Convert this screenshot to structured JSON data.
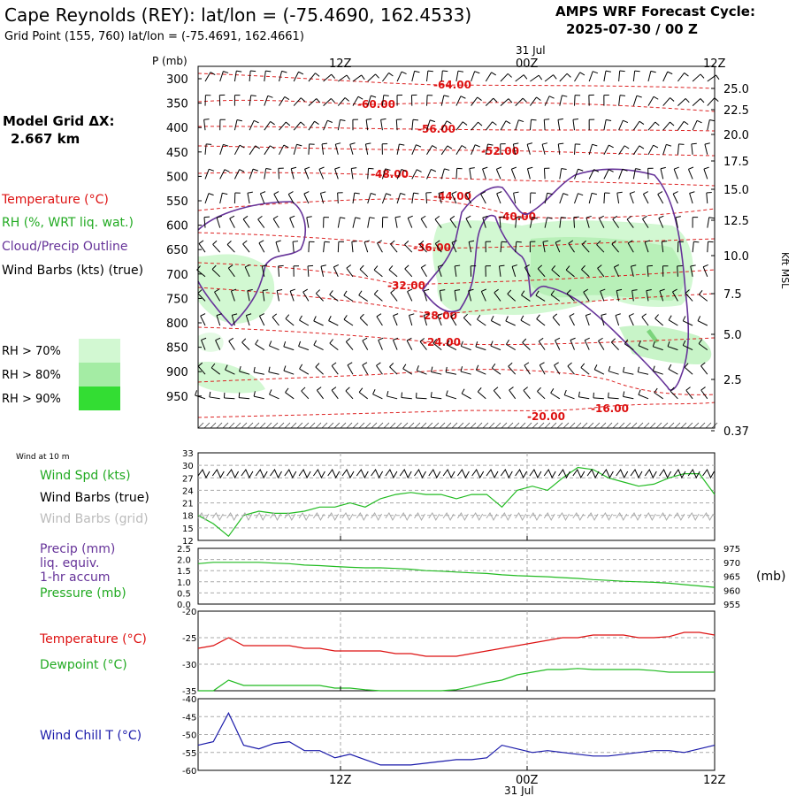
{
  "header": {
    "title": "Cape Reynolds (REY):  lat/lon = (-75.4690, 162.4533)",
    "subtitle": "Grid Point (155, 760) lat/lon = (-75.4691, 162.4661)",
    "model_line1": "AMPS WRF Forecast Cycle:",
    "model_line2": "2025-07-30 / 00  Z"
  },
  "left_panel": {
    "grid_label": "Model Grid ΔX:",
    "grid_value": "2.667 km",
    "legend_temperature": "Temperature (°C)",
    "legend_rh": "RH (%, WRT liq. wat.)",
    "legend_cloud": "Cloud/Precip Outline",
    "legend_wind": "Wind Barbs (kts) (true)",
    "rh70": "RH > 70%",
    "rh80": "RH > 80%",
    "rh90": "RH > 90%"
  },
  "colors": {
    "temperature": "#dd1111",
    "rh70": "#d2f8d2",
    "rh80": "#a4eca4",
    "rh90": "#33dd33",
    "cloud": "#663399",
    "wind_speed": "#22bb22",
    "pressure": "#22bb22",
    "dewpoint": "#22bb22",
    "wind_chill": "#1a1aaa",
    "grid": "#aaaaaa"
  },
  "time_axis": {
    "top_date": "31 Jul",
    "bottom_date": "31 Jul",
    "ticks": [
      "12Z",
      "00Z",
      "12Z"
    ]
  },
  "chart_data": [
    {
      "type": "line",
      "panel": "cross-section",
      "ylabel": "P (mb)",
      "pressure_ticks": [
        300,
        350,
        400,
        450,
        500,
        550,
        600,
        650,
        700,
        750,
        800,
        850,
        900,
        950
      ],
      "right_axis_label": "Kft MSL",
      "height_ticks": [
        "25.0",
        "22.5",
        "20.0",
        "17.5",
        "15.0",
        "12.5",
        "10.0",
        "7.5",
        "5.0",
        "2.5",
        "0.37"
      ],
      "temperature_contour_labels": [
        "-64.00",
        "-60.00",
        "-56.00",
        "-52.00",
        "-48.00",
        "-44.00",
        "-40.00",
        "-36.00",
        "-32.00",
        "-28.00",
        "-24.00",
        "-20.00",
        "-16.00"
      ]
    },
    {
      "type": "line",
      "panel": "wind",
      "title": "Wind at 10 m",
      "series_labels": [
        "Wind Spd (kts)",
        "Wind Barbs (true)",
        "Wind Barbs (grid)"
      ],
      "ylim": [
        12,
        33
      ],
      "yticks": [
        12,
        15,
        18,
        21,
        24,
        27,
        30,
        33
      ],
      "series": [
        {
          "name": "Wind Spd (kts)",
          "values": [
            18,
            16,
            13,
            18,
            19,
            18.5,
            18.5,
            19,
            20,
            20,
            21,
            20,
            22,
            23,
            23.5,
            23,
            23,
            22,
            23,
            23,
            20,
            24,
            25,
            24,
            27,
            29.5,
            29,
            27,
            26,
            25,
            25.5,
            27,
            28,
            28,
            23
          ]
        }
      ]
    },
    {
      "type": "line",
      "panel": "precip-pressure",
      "series_labels": [
        "Precip (mm)",
        "liq. equiv.",
        "1-hr accum",
        "Pressure (mb)"
      ],
      "left_yticks": [
        "0.0",
        "0.5",
        "1.0",
        "1.5",
        "2.0",
        "2.5"
      ],
      "right_yticks": [
        955,
        960,
        965,
        970,
        975
      ],
      "right_unit": "(mb)",
      "series": [
        {
          "name": "Pressure (mb)",
          "values": [
            969.5,
            970,
            970,
            970,
            970,
            969.7,
            969.5,
            969,
            968.8,
            968.5,
            968.2,
            968,
            968,
            967.8,
            967.5,
            967,
            966.8,
            966.5,
            966.2,
            966,
            965.5,
            965.2,
            965,
            964.8,
            964.5,
            964.2,
            963.8,
            963.5,
            963.2,
            963,
            962.8,
            962.5,
            962,
            961.5,
            961
          ]
        }
      ]
    },
    {
      "type": "line",
      "panel": "temperature-dewpoint",
      "series_labels": [
        "Temperature (°C)",
        "Dewpoint (°C)"
      ],
      "ylim": [
        -35,
        -20
      ],
      "yticks": [
        -20,
        -25,
        -30,
        -35
      ],
      "series": [
        {
          "name": "Temperature (°C)",
          "values": [
            -27,
            -26.5,
            -25,
            -26.5,
            -26.5,
            -26.5,
            -26.5,
            -27,
            -27,
            -27.5,
            -27.5,
            -27.5,
            -27.5,
            -28,
            -28,
            -28.5,
            -28.5,
            -28.5,
            -28,
            -27.5,
            -27,
            -26.5,
            -26,
            -25.5,
            -25,
            -25,
            -24.5,
            -24.5,
            -24.5,
            -25,
            -25,
            -24.8,
            -24,
            -24,
            -24.5
          ]
        },
        {
          "name": "Dewpoint (°C)",
          "values": [
            -35,
            -35,
            -33,
            -34,
            -34,
            -34,
            -34,
            -34,
            -34,
            -34.5,
            -34.5,
            -34.8,
            -35,
            -35,
            -35,
            -35,
            -35,
            -34.8,
            -34.2,
            -33.5,
            -33,
            -32,
            -31.5,
            -31,
            -31,
            -30.8,
            -31,
            -31,
            -31,
            -31,
            -31.2,
            -31.5,
            -31.5,
            -31.5,
            -31.5
          ]
        }
      ]
    },
    {
      "type": "line",
      "panel": "wind-chill",
      "series_labels": [
        "Wind Chill T (°C)"
      ],
      "ylim": [
        -60,
        -40
      ],
      "yticks": [
        -40,
        -45,
        -50,
        -55,
        -60
      ],
      "series": [
        {
          "name": "Wind Chill T (°C)",
          "values": [
            -53,
            -52,
            -44,
            -53,
            -54,
            -52.5,
            -52,
            -54.5,
            -54.5,
            -56.5,
            -55.5,
            -57,
            -58.5,
            -58.5,
            -58.5,
            -58,
            -57.5,
            -57,
            -57,
            -56.5,
            -53,
            -54,
            -55,
            -54.5,
            -55,
            -55.5,
            -56,
            -56,
            -55.5,
            -55,
            -54.5,
            -54.5,
            -55,
            -54,
            -53
          ]
        }
      ]
    }
  ]
}
